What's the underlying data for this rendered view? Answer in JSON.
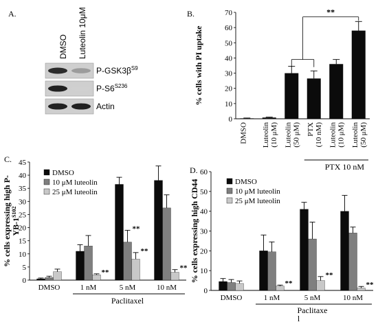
{
  "panel_letters": {
    "a": "A.",
    "b": "B.",
    "c": "C.",
    "d": "D."
  },
  "blot": {
    "lanes": [
      "DMSO",
      "Luteolin 10μM"
    ],
    "rows": [
      {
        "base": "P-GSK3β",
        "sup": "S9",
        "dmso_intensity": 0.85,
        "luteolin_intensity": 0.35
      },
      {
        "base": "P-S6",
        "sup": "S236",
        "dmso_intensity": 0.9,
        "luteolin_intensity": 0.12
      },
      {
        "base": "Actin",
        "sup": "",
        "dmso_intensity": 0.9,
        "luteolin_intensity": 0.9
      }
    ]
  },
  "colors": {
    "black": "#0b0b0b",
    "dark_gray": "#7f7f7f",
    "light_gray": "#c8c8c8",
    "blot_bg": "#cfcfcf"
  },
  "chart_data": [
    {
      "panel": "B",
      "type": "bar",
      "ylabel": "% cells with PI uptake",
      "ylim": [
        0,
        70
      ],
      "yticks": [
        0,
        10,
        20,
        30,
        40,
        50,
        60,
        70
      ],
      "categories": [
        "DMSO",
        "Luteolin (10 μM)",
        "Luteolin (50 μM)",
        "PTX (10 nM)",
        "Luteolin (10 μM)",
        "Luteolin (50 μM)"
      ],
      "category_lines": [
        [
          "DMSO"
        ],
        [
          "Luteolin",
          "(10 μM)"
        ],
        [
          "Luteolin",
          "(50 μM)"
        ],
        [
          "PTX",
          "(10 nM)"
        ],
        [
          "Luteolin",
          "(10 μM)"
        ],
        [
          "Luteolin",
          "(50 μM)"
        ]
      ],
      "values": [
        0.3,
        0.8,
        30,
        26.5,
        36,
        58
      ],
      "errors": [
        0.2,
        0.3,
        4.5,
        5,
        3,
        6
      ],
      "group_label": "PTX 10 nM",
      "significance": "**",
      "color": "#0b0b0b",
      "grid": false
    },
    {
      "panel": "C",
      "type": "bar",
      "ylabel_lines": [
        "% cells expressing high P-",
        "YB-1"
      ],
      "ylabel_sup": "S102",
      "ylim": [
        0,
        45
      ],
      "yticks": [
        0,
        5,
        10,
        15,
        20,
        25,
        30,
        35,
        40,
        45
      ],
      "categories": [
        "DMSO",
        "1 nM",
        "5 nM",
        "10 nM"
      ],
      "group_label": "Paclitaxel",
      "legend_position": "top-left",
      "series": [
        {
          "name": "DMSO",
          "color": "#0b0b0b",
          "values": [
            0.5,
            11,
            36.5,
            38
          ],
          "errors": [
            0.3,
            2.5,
            2.7,
            5.5
          ],
          "sig": [
            "",
            "",
            "",
            ""
          ]
        },
        {
          "name": "10 μM luteolin",
          "color": "#7f7f7f",
          "values": [
            1,
            13,
            14.5,
            27.5
          ],
          "errors": [
            0.5,
            4,
            4.5,
            5
          ],
          "sig": [
            "",
            "",
            "**",
            ""
          ]
        },
        {
          "name": "25 μM luteolin",
          "color": "#c8c8c8",
          "values": [
            3.2,
            2,
            8,
            3
          ],
          "errors": [
            1,
            0.4,
            2.5,
            1
          ],
          "sig": [
            "",
            "**",
            "**",
            "**"
          ]
        }
      ],
      "grid": false
    },
    {
      "panel": "D",
      "type": "bar",
      "ylabel": "% cells expressing high CD44",
      "ylim": [
        0,
        60
      ],
      "yticks": [
        0,
        10,
        20,
        30,
        40,
        50,
        60
      ],
      "categories": [
        "DMSO",
        "1 nM",
        "5 nM",
        "10 nM"
      ],
      "group_label_lines": [
        "Paclitaxe",
        "l"
      ],
      "legend_position": "top-left",
      "series": [
        {
          "name": "DMSO",
          "color": "#0b0b0b",
          "values": [
            4.5,
            20,
            41,
            40
          ],
          "errors": [
            1.5,
            8,
            3.5,
            8
          ],
          "sig": [
            "",
            "",
            "",
            ""
          ]
        },
        {
          "name": "10 μM luteolin",
          "color": "#7f7f7f",
          "values": [
            4,
            19.5,
            26,
            29
          ],
          "errors": [
            1.5,
            5,
            8.5,
            3
          ],
          "sig": [
            "",
            "",
            "",
            ""
          ]
        },
        {
          "name": "25 μM luteolin",
          "color": "#c8c8c8",
          "values": [
            3.5,
            2.2,
            5,
            1.2
          ],
          "errors": [
            1.3,
            0.5,
            2,
            0.8
          ],
          "sig": [
            "",
            "**",
            "**",
            "**"
          ]
        }
      ],
      "grid": false
    }
  ]
}
